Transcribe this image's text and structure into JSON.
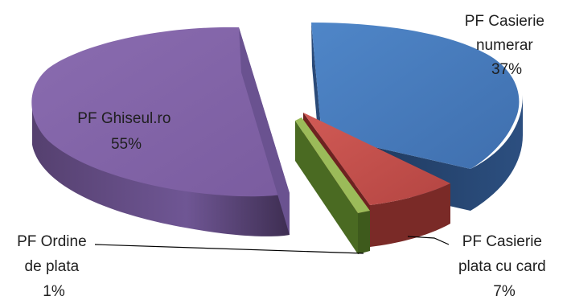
{
  "chart_data": {
    "type": "pie",
    "style": "3d-exploded",
    "title": "",
    "slices": [
      {
        "name": "PF Casierie numerar",
        "value": 37,
        "label_lines": [
          "PF Casierie",
          "numerar",
          "37%"
        ],
        "color": "#4F81BD"
      },
      {
        "name": "PF Casierie plata cu card",
        "value": 7,
        "label_lines": [
          "PF Casierie",
          "plata cu card",
          "7%"
        ],
        "color": "#C0504D"
      },
      {
        "name": "PF Ordine de plata",
        "value": 1,
        "label_lines": [
          "PF Ordine",
          "de plata",
          "1%"
        ],
        "color": "#9BBB59"
      },
      {
        "name": "PF Ghiseul.ro",
        "value": 55,
        "label_lines": [
          "PF Ghiseul.ro",
          "55%"
        ],
        "color": "#8064A2"
      }
    ]
  }
}
